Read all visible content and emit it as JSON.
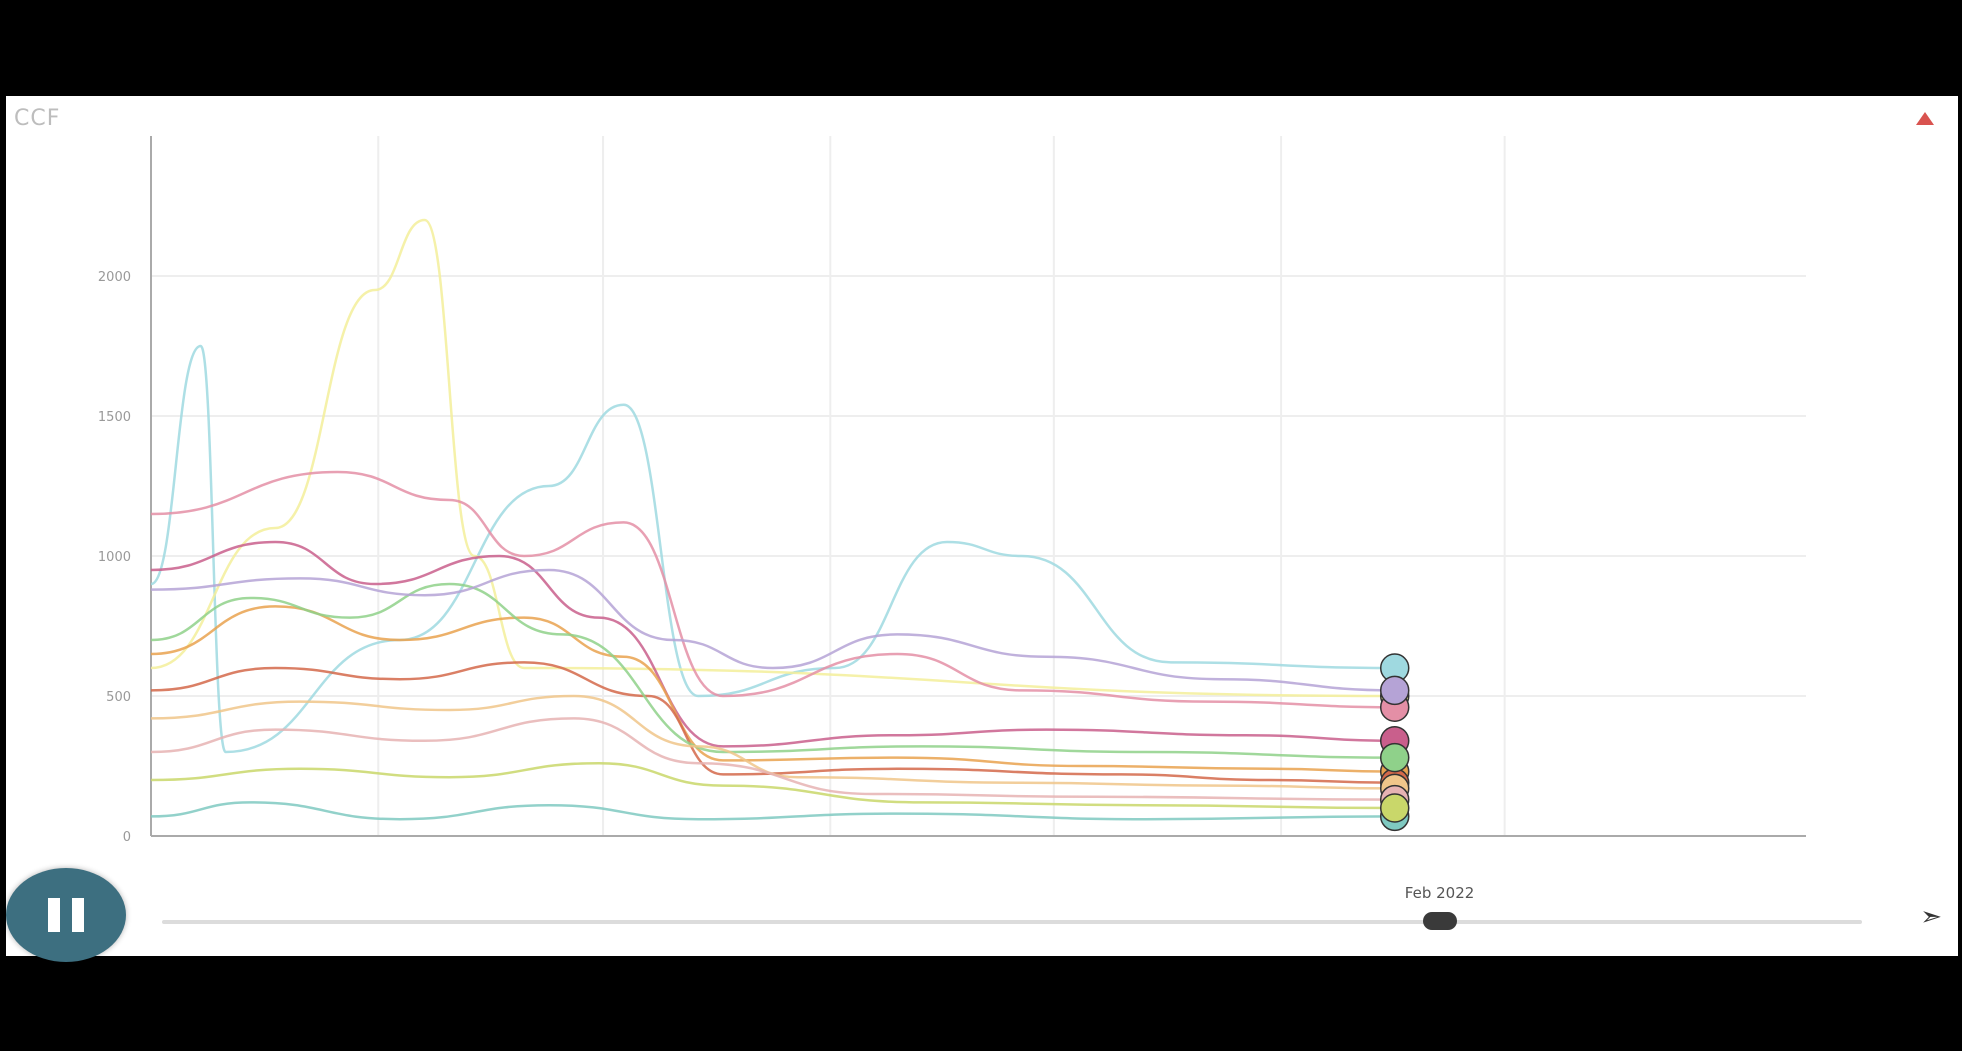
{
  "ui": {
    "top_label": "CCF",
    "legend_toggle_label": "",
    "current_date": "Feb 2022",
    "play_icon": "pause-icon",
    "speed_icon": "speed-icon"
  },
  "colors": {
    "accent": "#d9534f",
    "play_button": "#3d6f80",
    "grid": "#eeeeee"
  },
  "chart_data": {
    "type": "line",
    "title": "",
    "xlabel": "",
    "ylabel": "",
    "xlim": [
      "2019-05-01",
      "2022-12-31"
    ],
    "ylim": [
      0,
      2500
    ],
    "yticks": [
      0,
      500,
      1000,
      1500,
      2000
    ],
    "xticks": [
      "2019-05-01",
      "2019-11-01",
      "2020-05-01",
      "2020-11-01",
      "2021-05-01",
      "2021-11-01",
      "2022-05-01"
    ],
    "xticks_label_text": [
      "",
      "",
      "",
      "",
      "",
      "",
      ""
    ],
    "current_x": "2022-02-01",
    "series": [
      {
        "color": "#9fd9e0",
        "values": [
          [
            0,
            900
          ],
          [
            0.04,
            1750
          ],
          [
            0.06,
            300
          ],
          [
            0.2,
            700
          ],
          [
            0.32,
            1250
          ],
          [
            0.38,
            1540
          ],
          [
            0.44,
            500
          ],
          [
            0.55,
            600
          ],
          [
            0.64,
            1050
          ],
          [
            0.7,
            1000
          ],
          [
            0.82,
            620
          ],
          [
            1,
            600
          ]
        ]
      },
      {
        "color": "#f3ef9a",
        "values": [
          [
            0,
            600
          ],
          [
            0.1,
            1100
          ],
          [
            0.18,
            1950
          ],
          [
            0.22,
            2200
          ],
          [
            0.26,
            1000
          ],
          [
            0.3,
            600
          ],
          [
            1,
            500
          ]
        ]
      },
      {
        "color": "#e48fa6",
        "values": [
          [
            0,
            1150
          ],
          [
            0.15,
            1300
          ],
          [
            0.24,
            1200
          ],
          [
            0.3,
            1000
          ],
          [
            0.38,
            1120
          ],
          [
            0.46,
            500
          ],
          [
            0.6,
            650
          ],
          [
            0.7,
            520
          ],
          [
            0.85,
            480
          ],
          [
            1,
            460
          ]
        ]
      },
      {
        "color": "#c95f8c",
        "values": [
          [
            0,
            950
          ],
          [
            0.1,
            1050
          ],
          [
            0.18,
            900
          ],
          [
            0.28,
            1000
          ],
          [
            0.36,
            780
          ],
          [
            0.46,
            320
          ],
          [
            0.6,
            360
          ],
          [
            0.72,
            380
          ],
          [
            0.88,
            360
          ],
          [
            1,
            340
          ]
        ]
      },
      {
        "color": "#e9a24f",
        "values": [
          [
            0,
            650
          ],
          [
            0.1,
            820
          ],
          [
            0.2,
            700
          ],
          [
            0.3,
            780
          ],
          [
            0.38,
            640
          ],
          [
            0.46,
            270
          ],
          [
            0.6,
            280
          ],
          [
            0.75,
            250
          ],
          [
            0.9,
            240
          ],
          [
            1,
            230
          ]
        ]
      },
      {
        "color": "#d4694a",
        "values": [
          [
            0,
            520
          ],
          [
            0.1,
            600
          ],
          [
            0.2,
            560
          ],
          [
            0.3,
            620
          ],
          [
            0.4,
            500
          ],
          [
            0.46,
            220
          ],
          [
            0.6,
            240
          ],
          [
            0.78,
            220
          ],
          [
            0.9,
            200
          ],
          [
            1,
            190
          ]
        ]
      },
      {
        "color": "#8fd18a",
        "values": [
          [
            0,
            700
          ],
          [
            0.08,
            850
          ],
          [
            0.16,
            780
          ],
          [
            0.24,
            900
          ],
          [
            0.33,
            720
          ],
          [
            0.46,
            300
          ],
          [
            0.62,
            320
          ],
          [
            0.8,
            300
          ],
          [
            1,
            280
          ]
        ]
      },
      {
        "color": "#b5a3d6",
        "values": [
          [
            0,
            880
          ],
          [
            0.12,
            920
          ],
          [
            0.22,
            860
          ],
          [
            0.32,
            950
          ],
          [
            0.42,
            700
          ],
          [
            0.5,
            600
          ],
          [
            0.6,
            720
          ],
          [
            0.72,
            640
          ],
          [
            0.86,
            560
          ],
          [
            1,
            520
          ]
        ]
      },
      {
        "color": "#f0c68a",
        "values": [
          [
            0,
            420
          ],
          [
            0.12,
            480
          ],
          [
            0.24,
            450
          ],
          [
            0.34,
            500
          ],
          [
            0.44,
            320
          ],
          [
            0.52,
            210
          ],
          [
            0.7,
            190
          ],
          [
            0.86,
            180
          ],
          [
            1,
            170
          ]
        ]
      },
      {
        "color": "#7fc9c1",
        "values": [
          [
            0,
            70
          ],
          [
            0.08,
            120
          ],
          [
            0.2,
            60
          ],
          [
            0.32,
            110
          ],
          [
            0.44,
            60
          ],
          [
            0.6,
            80
          ],
          [
            0.8,
            60
          ],
          [
            1,
            70
          ]
        ]
      },
      {
        "color": "#e6b3b3",
        "values": [
          [
            0,
            300
          ],
          [
            0.1,
            380
          ],
          [
            0.22,
            340
          ],
          [
            0.34,
            420
          ],
          [
            0.44,
            260
          ],
          [
            0.58,
            150
          ],
          [
            0.76,
            140
          ],
          [
            1,
            130
          ]
        ]
      },
      {
        "color": "#c9d76a",
        "values": [
          [
            0,
            200
          ],
          [
            0.12,
            240
          ],
          [
            0.24,
            210
          ],
          [
            0.36,
            260
          ],
          [
            0.46,
            180
          ],
          [
            0.62,
            120
          ],
          [
            0.8,
            110
          ],
          [
            1,
            100
          ]
        ]
      }
    ]
  }
}
